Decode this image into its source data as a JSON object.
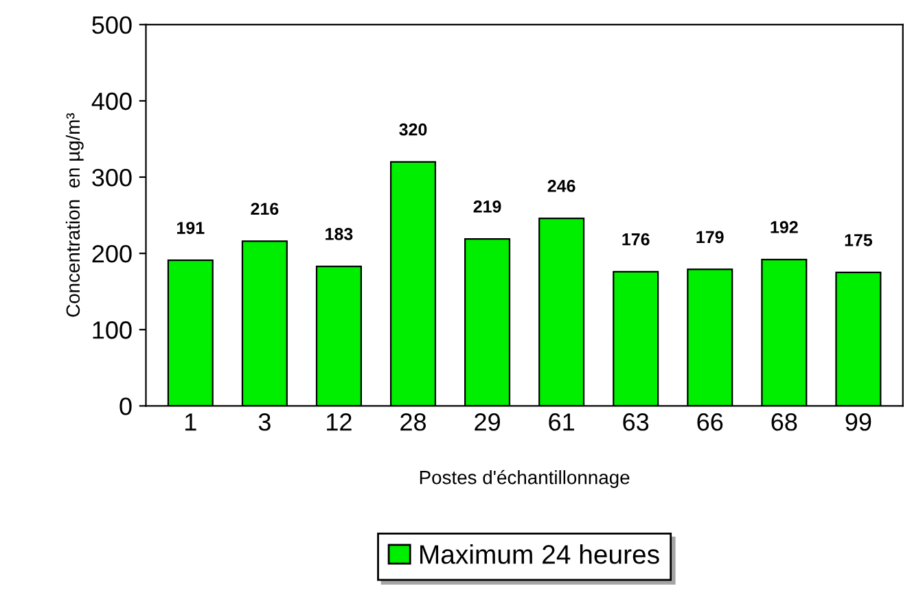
{
  "chart_data": {
    "type": "bar",
    "xlabel": "Postes d'échantillonnage",
    "ylabel": "Concentration  en µg/m³",
    "categories": [
      "1",
      "3",
      "12",
      "28",
      "29",
      "61",
      "63",
      "66",
      "68",
      "99"
    ],
    "series": [
      {
        "name": "Maximum 24 heures",
        "color": "#00ee00",
        "values": [
          191,
          216,
          183,
          320,
          219,
          246,
          176,
          179,
          192,
          175
        ]
      }
    ],
    "ylim": [
      0,
      500
    ],
    "yticks": [
      0,
      100,
      200,
      300,
      400,
      500
    ],
    "data_labels": true,
    "grid": false,
    "legend": "bottom"
  }
}
